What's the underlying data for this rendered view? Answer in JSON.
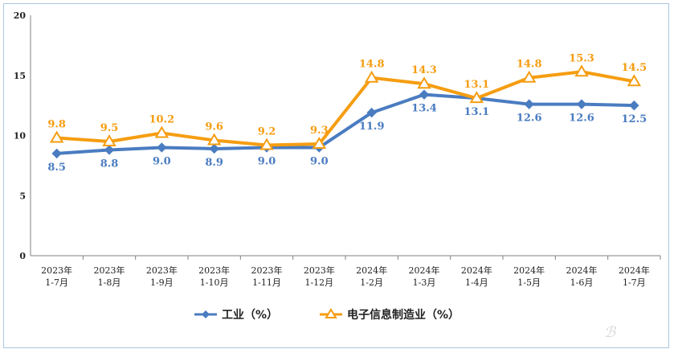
{
  "chart_data": {
    "type": "line",
    "title": "",
    "xlabel": "",
    "ylabel": "",
    "ylim": [
      0,
      20
    ],
    "yticks": [
      0,
      5,
      10,
      15,
      20
    ],
    "grid": false,
    "legend_position": "bottom",
    "categories": [
      [
        "2023年",
        "1-7月"
      ],
      [
        "2023年",
        "1-8月"
      ],
      [
        "2023年",
        "1-9月"
      ],
      [
        "2023年",
        "1-10月"
      ],
      [
        "2023年",
        "1-11月"
      ],
      [
        "2023年",
        "1-12月"
      ],
      [
        "2024年",
        "1-2月"
      ],
      [
        "2024年",
        "1-3月"
      ],
      [
        "2024年",
        "1-4月"
      ],
      [
        "2024年",
        "1-5月"
      ],
      [
        "2024年",
        "1-6月"
      ],
      [
        "2024年",
        "1-7月"
      ]
    ],
    "series": [
      {
        "name": "工业（%）",
        "color": "#4a7cc1",
        "marker": "diamond",
        "label_position": "below",
        "values": [
          8.5,
          8.8,
          9.0,
          8.9,
          9.0,
          9.0,
          11.9,
          13.4,
          13.1,
          12.6,
          12.6,
          12.5
        ],
        "labels": [
          "8.5",
          "8.8",
          "9.0",
          "8.9",
          "9.0",
          "9.0",
          "11.9",
          "13.4",
          "13.1",
          "12.6",
          "12.6",
          "12.5"
        ]
      },
      {
        "name": "电子信息制造业（%）",
        "color": "#f59d11",
        "marker": "triangle",
        "label_position": "above",
        "values": [
          9.8,
          9.5,
          10.2,
          9.6,
          9.2,
          9.3,
          14.8,
          14.3,
          13.1,
          14.8,
          15.3,
          14.5
        ],
        "labels": [
          "9.8",
          "9.5",
          "10.2",
          "9.6",
          "9.2",
          "9.3",
          "14.8",
          "14.3",
          "13.1",
          "14.8",
          "15.3",
          "14.5"
        ]
      }
    ]
  }
}
